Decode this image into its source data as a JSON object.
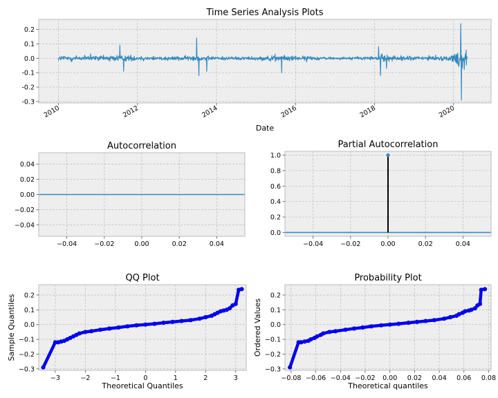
{
  "colors": {
    "axes_bg": "#EEEEEE",
    "grid": "#BBBBBB",
    "frame": "#BCBCBC",
    "series": "#348ABD",
    "pacf_stem": "#000000",
    "qq_points": "#0000EE",
    "text": "#000000"
  },
  "chart_data": [
    {
      "id": "ts",
      "type": "line",
      "title": "Time Series Analysis Plots",
      "xlabel": "Date",
      "ylabel": "",
      "xlim": [
        2009.5,
        2020.95
      ],
      "ylim": [
        -0.31,
        0.27
      ],
      "xticks": [
        2010,
        2012,
        2014,
        2016,
        2018,
        2020
      ],
      "xtick_labels": [
        "2010",
        "2012",
        "2014",
        "2016",
        "2018",
        "2020"
      ],
      "yticks": [
        -0.3,
        -0.2,
        -0.1,
        0.0,
        0.1,
        0.2
      ],
      "ytick_labels": [
        "-0.3",
        "-0.2",
        "-0.1",
        "0.0",
        "0.1",
        "0.2"
      ],
      "x_range": [
        2010.0,
        2020.35
      ],
      "volatility": [
        [
          2010.0,
          0.012
        ],
        [
          2010.3,
          0.015
        ],
        [
          2010.6,
          0.012
        ],
        [
          2011.0,
          0.011
        ],
        [
          2011.6,
          0.016
        ],
        [
          2012.0,
          0.01
        ],
        [
          2013.0,
          0.009
        ],
        [
          2013.4,
          0.012
        ],
        [
          2014.0,
          0.008
        ],
        [
          2015.0,
          0.008
        ],
        [
          2015.6,
          0.013
        ],
        [
          2016.0,
          0.011
        ],
        [
          2017.0,
          0.005
        ],
        [
          2018.0,
          0.009
        ],
        [
          2018.2,
          0.014
        ],
        [
          2019.0,
          0.009
        ],
        [
          2019.9,
          0.01
        ],
        [
          2020.1,
          0.03
        ],
        [
          2020.2,
          0.065
        ],
        [
          2020.35,
          0.04
        ]
      ],
      "spikes": [
        [
          2011.55,
          0.09
        ],
        [
          2011.65,
          -0.09
        ],
        [
          2013.5,
          0.14
        ],
        [
          2013.55,
          -0.12
        ],
        [
          2013.75,
          -0.09
        ],
        [
          2015.65,
          -0.1
        ],
        [
          2018.1,
          0.08
        ],
        [
          2018.15,
          -0.12
        ],
        [
          2018.3,
          -0.07
        ],
        [
          2020.18,
          0.24
        ],
        [
          2020.2,
          -0.29
        ]
      ],
      "grid": true
    },
    {
      "id": "acf",
      "type": "line",
      "title": "Autocorrelation",
      "xlabel": "",
      "ylabel": "",
      "xlim": [
        -0.055,
        0.055
      ],
      "ylim": [
        -0.055,
        0.055
      ],
      "xticks": [
        -0.04,
        -0.02,
        0.0,
        0.02,
        0.04
      ],
      "xtick_labels": [
        "−0.04",
        "−0.02",
        "0.00",
        "0.02",
        "0.04"
      ],
      "yticks": [
        -0.04,
        -0.02,
        0.0,
        0.02,
        0.04
      ],
      "ytick_labels": [
        "−0.04",
        "−0.02",
        "0.00",
        "0.02",
        "0.04"
      ],
      "hline": 0.0,
      "grid": true
    },
    {
      "id": "pacf",
      "type": "line",
      "title": "Partial Autocorrelation",
      "xlabel": "",
      "ylabel": "",
      "xlim": [
        -0.055,
        0.055
      ],
      "ylim": [
        -0.05,
        1.05
      ],
      "xticks": [
        -0.04,
        -0.02,
        0.0,
        0.02,
        0.04
      ],
      "xtick_labels": [
        "−0.04",
        "−0.02",
        "0.00",
        "0.02",
        "0.04"
      ],
      "yticks": [
        0.0,
        0.2,
        0.4,
        0.6,
        0.8,
        1.0
      ],
      "ytick_labels": [
        "0.0",
        "0.2",
        "0.4",
        "0.6",
        "0.8",
        "1.0"
      ],
      "hline": 0.0,
      "stems": [
        {
          "x": 0.0,
          "y": 1.0
        }
      ],
      "grid": true
    },
    {
      "id": "qq",
      "type": "scatter",
      "title": "QQ Plot",
      "xlabel": "Theoretical Quantiles",
      "ylabel": "Sample Quantiles",
      "xlim": [
        -3.55,
        3.35
      ],
      "ylim": [
        -0.31,
        0.27
      ],
      "xticks": [
        -3,
        -2,
        -1,
        0,
        1,
        2,
        3
      ],
      "xtick_labels": [
        "−3",
        "−2",
        "−1",
        "0",
        "1",
        "2",
        "3"
      ],
      "yticks": [
        -0.3,
        -0.2,
        -0.1,
        0.0,
        0.1,
        0.2
      ],
      "ytick_labels": [
        "−0.3",
        "−0.2",
        "−0.1",
        "0.0",
        "0.1",
        "0.2"
      ],
      "points": [
        [
          -3.4,
          -0.29
        ],
        [
          -3.0,
          -0.12
        ],
        [
          -2.9,
          -0.12
        ],
        [
          -2.8,
          -0.115
        ],
        [
          -2.7,
          -0.11
        ],
        [
          -2.6,
          -0.1
        ],
        [
          -2.5,
          -0.09
        ],
        [
          -2.4,
          -0.08
        ],
        [
          -2.3,
          -0.07
        ],
        [
          -2.2,
          -0.06
        ],
        [
          -2.0,
          -0.05
        ],
        [
          -1.8,
          -0.045
        ],
        [
          -1.5,
          -0.035
        ],
        [
          -1.2,
          -0.027
        ],
        [
          -0.9,
          -0.02
        ],
        [
          -0.6,
          -0.012
        ],
        [
          -0.3,
          -0.005
        ],
        [
          0.0,
          0.0
        ],
        [
          0.3,
          0.005
        ],
        [
          0.6,
          0.012
        ],
        [
          0.9,
          0.018
        ],
        [
          1.2,
          0.024
        ],
        [
          1.5,
          0.03
        ],
        [
          1.8,
          0.04
        ],
        [
          2.0,
          0.05
        ],
        [
          2.2,
          0.06
        ],
        [
          2.3,
          0.07
        ],
        [
          2.4,
          0.08
        ],
        [
          2.5,
          0.09
        ],
        [
          2.6,
          0.095
        ],
        [
          2.7,
          0.1
        ],
        [
          2.8,
          0.11
        ],
        [
          2.9,
          0.13
        ],
        [
          3.0,
          0.14
        ],
        [
          3.1,
          0.235
        ],
        [
          3.2,
          0.24
        ]
      ],
      "grid": true
    },
    {
      "id": "prob",
      "type": "scatter",
      "title": "Probability Plot",
      "xlabel": "Theoretical quantiles",
      "ylabel": "Ordered Values",
      "xlim": [
        -0.085,
        0.082
      ],
      "ylim": [
        -0.31,
        0.27
      ],
      "xticks": [
        -0.08,
        -0.06,
        -0.04,
        -0.02,
        0.0,
        0.02,
        0.04,
        0.06,
        0.08
      ],
      "xtick_labels": [
        "−0.08",
        "−0.06",
        "−0.04",
        "−0.02",
        "0.00",
        "0.02",
        "0.04",
        "0.06",
        "0.08"
      ],
      "yticks": [
        -0.3,
        -0.2,
        -0.1,
        0.0,
        0.1,
        0.2
      ],
      "ytick_labels": [
        "−0.3",
        "−0.2",
        "−0.1",
        "0.0",
        "0.1",
        "0.2"
      ],
      "points": [
        [
          -0.081,
          -0.29
        ],
        [
          -0.074,
          -0.12
        ],
        [
          -0.072,
          -0.12
        ],
        [
          -0.069,
          -0.115
        ],
        [
          -0.066,
          -0.11
        ],
        [
          -0.064,
          -0.1
        ],
        [
          -0.061,
          -0.09
        ],
        [
          -0.059,
          -0.08
        ],
        [
          -0.056,
          -0.07
        ],
        [
          -0.054,
          -0.06
        ],
        [
          -0.049,
          -0.05
        ],
        [
          -0.044,
          -0.045
        ],
        [
          -0.036,
          -0.035
        ],
        [
          -0.029,
          -0.027
        ],
        [
          -0.022,
          -0.02
        ],
        [
          -0.015,
          -0.012
        ],
        [
          -0.007,
          -0.005
        ],
        [
          0.0,
          0.0
        ],
        [
          0.007,
          0.005
        ],
        [
          0.015,
          0.012
        ],
        [
          0.022,
          0.018
        ],
        [
          0.029,
          0.024
        ],
        [
          0.036,
          0.03
        ],
        [
          0.044,
          0.04
        ],
        [
          0.049,
          0.05
        ],
        [
          0.054,
          0.06
        ],
        [
          0.056,
          0.07
        ],
        [
          0.059,
          0.08
        ],
        [
          0.061,
          0.09
        ],
        [
          0.064,
          0.095
        ],
        [
          0.066,
          0.1
        ],
        [
          0.069,
          0.11
        ],
        [
          0.071,
          0.13
        ],
        [
          0.073,
          0.14
        ],
        [
          0.074,
          0.235
        ],
        [
          0.077,
          0.24
        ]
      ],
      "grid": true
    }
  ]
}
